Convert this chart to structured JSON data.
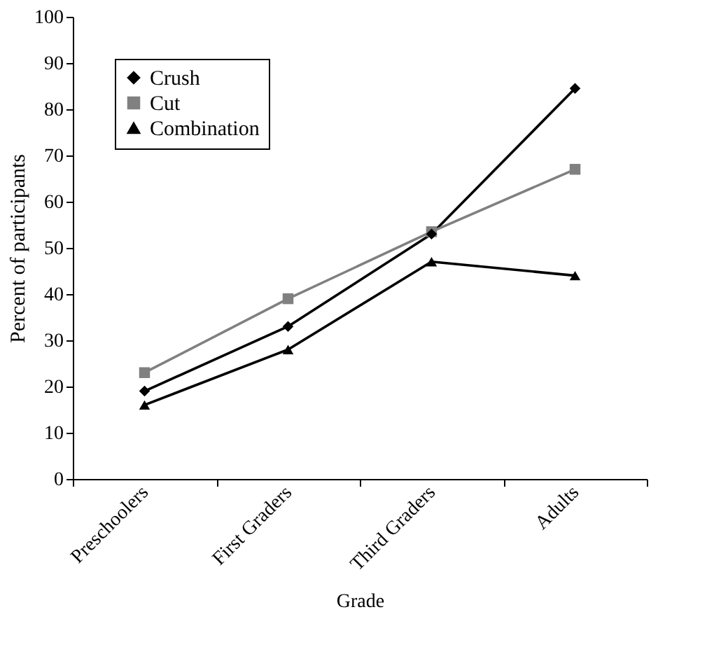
{
  "chart_data": {
    "type": "line",
    "xlabel": "Grade",
    "ylabel": "Percent of participants",
    "categories": [
      "Preschoolers",
      "First Graders",
      "Third Graders",
      "Adults"
    ],
    "series": [
      {
        "name": "Crush",
        "color": "#000000",
        "marker": "diamond",
        "values": [
          19,
          33,
          53,
          84.5
        ]
      },
      {
        "name": "Cut",
        "color": "#808080",
        "marker": "square",
        "values": [
          23,
          39,
          53.5,
          67
        ]
      },
      {
        "name": "Combination",
        "color": "#000000",
        "marker": "triangle",
        "values": [
          16,
          28,
          47,
          44
        ]
      }
    ],
    "ylim": [
      0,
      100
    ],
    "yticks": [
      0,
      10,
      20,
      30,
      40,
      50,
      60,
      70,
      80,
      90,
      100
    ],
    "grid": false,
    "legend": "top left",
    "line_style": "solid"
  }
}
